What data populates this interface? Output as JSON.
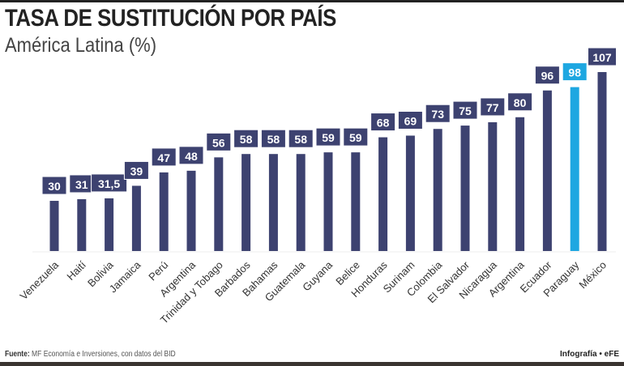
{
  "header": {
    "title": "TASA DE SUSTITUCIÓN POR PAÍS",
    "subtitle": "América Latina (%)"
  },
  "footer": {
    "source_label": "Fuente:",
    "source_text": "MF Economía e Inversiones, con datos del BID",
    "credit": "Infografía • eFE"
  },
  "colors": {
    "bar": "#3d4270",
    "highlight": "#1ea7e1",
    "label_text": "#ffffff"
  },
  "chart_data": {
    "type": "bar",
    "title": "TASA DE SUSTITUCIÓN POR PAÍS",
    "subtitle": "América Latina (%)",
    "categories": [
      "Venezuela",
      "Haití",
      "Bolivia",
      "Jamaica",
      "Perú",
      "Argentina",
      "Trinidad y Tobago",
      "Barbados",
      "Bahamas",
      "Guatemala",
      "Guyana",
      "Belice",
      "Honduras",
      "Surinam",
      "Colombia",
      "El Salvador",
      "Nicaragua",
      "Argentina",
      "Ecuador",
      "Paraguay",
      "México"
    ],
    "values": [
      30,
      31,
      31.5,
      39,
      47,
      48,
      56,
      58,
      58,
      58,
      59,
      59,
      68,
      69,
      73,
      75,
      77,
      80,
      96,
      98,
      107
    ],
    "value_labels": [
      "30",
      "31",
      "31,5",
      "39",
      "47",
      "48",
      "56",
      "58",
      "58",
      "58",
      "59",
      "59",
      "68",
      "69",
      "73",
      "75",
      "77",
      "80",
      "96",
      "98",
      "107"
    ],
    "highlight": "Paraguay",
    "ylim": [
      0,
      107
    ],
    "grid": false,
    "xlabel": "",
    "ylabel": ""
  }
}
